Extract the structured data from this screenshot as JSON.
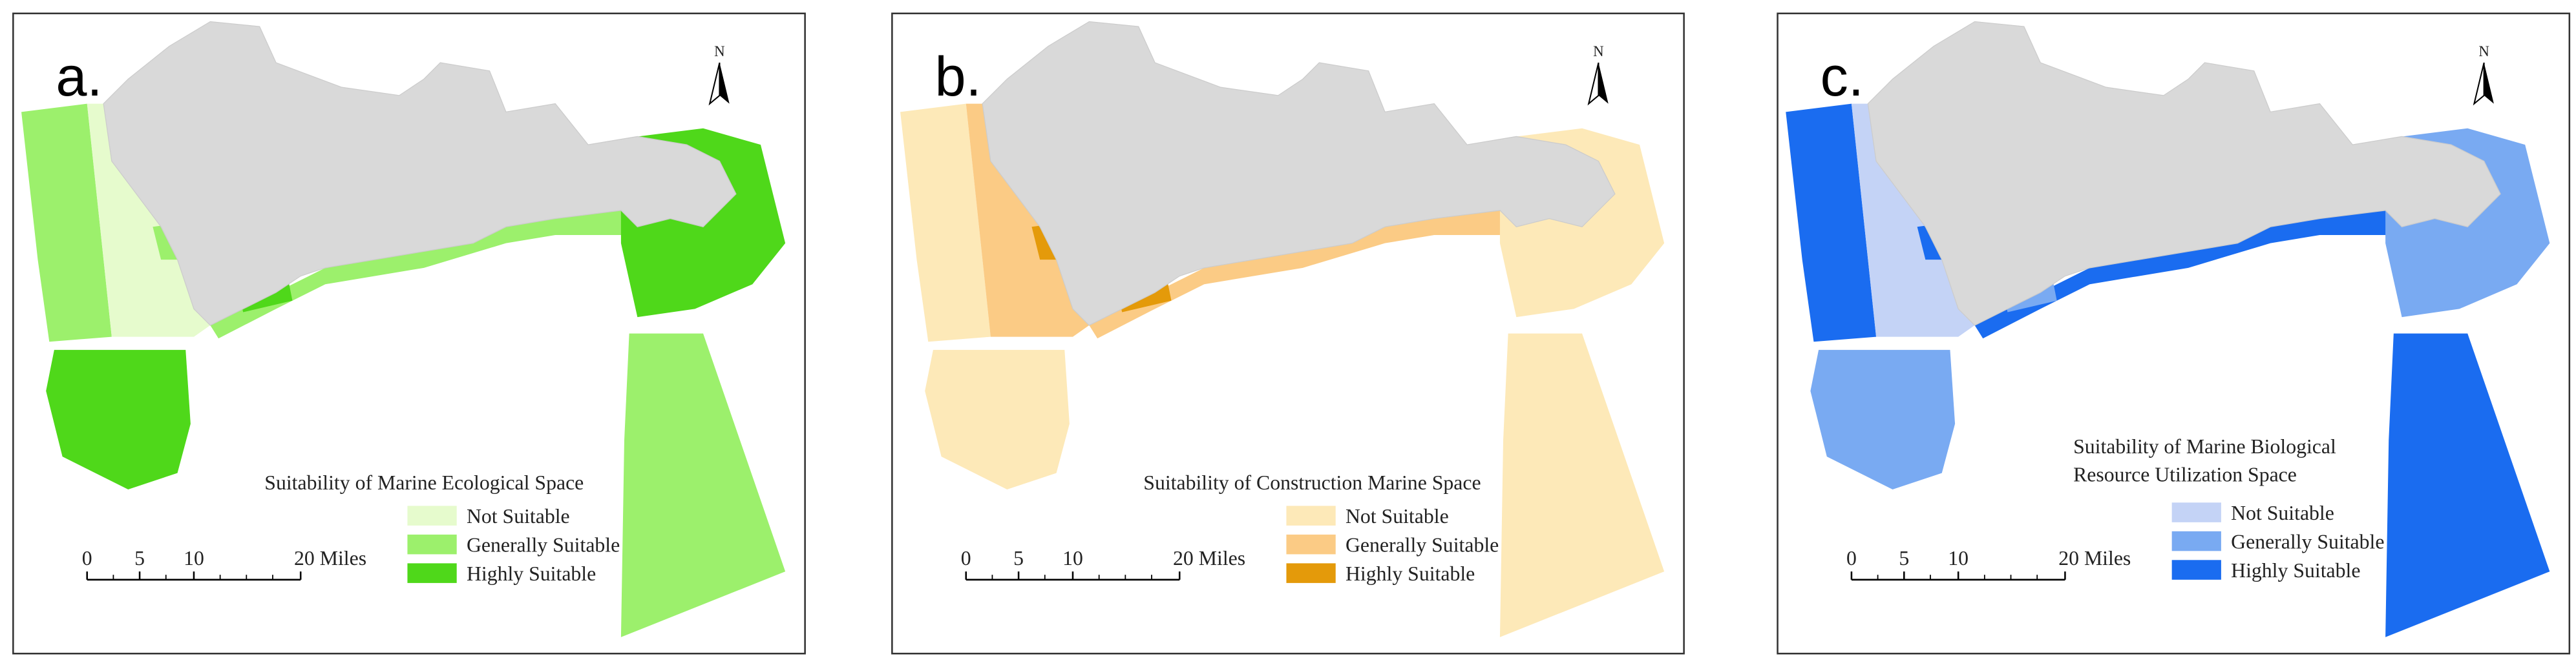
{
  "panels": [
    {
      "label": "a.",
      "north": "N",
      "legend": {
        "title": [
          "Suitability of Marine Ecological Space"
        ],
        "items": [
          {
            "label": "Not Suitable",
            "color": "#e6fbcd"
          },
          {
            "label": "Generally Suitable",
            "color": "#9cf06c"
          },
          {
            "label": "Highly Suitable",
            "color": "#4fd81a"
          }
        ]
      },
      "scale_labels": [
        "0",
        "5",
        "10",
        "20 Miles"
      ]
    },
    {
      "label": "b.",
      "north": "N",
      "legend": {
        "title": [
          "Suitability of Construction Marine Space"
        ],
        "items": [
          {
            "label": "Not Suitable",
            "color": "#fde9b8"
          },
          {
            "label": "Generally Suitable",
            "color": "#fbcb85"
          },
          {
            "label": "Highly Suitable",
            "color": "#e49a0a"
          }
        ]
      },
      "scale_labels": [
        "0",
        "5",
        "10",
        "20 Miles"
      ]
    },
    {
      "label": "c.",
      "north": "N",
      "legend": {
        "title": [
          "Suitability of Marine Biological",
          "Resource Utilization Space"
        ],
        "items": [
          {
            "label": "Not Suitable",
            "color": "#c4d3f6"
          },
          {
            "label": "Generally Suitable",
            "color": "#79aaf2"
          },
          {
            "label": "Highly Suitable",
            "color": "#1a6cf0"
          }
        ]
      },
      "scale_labels": [
        "0",
        "5",
        "10",
        "20 Miles"
      ]
    }
  ]
}
